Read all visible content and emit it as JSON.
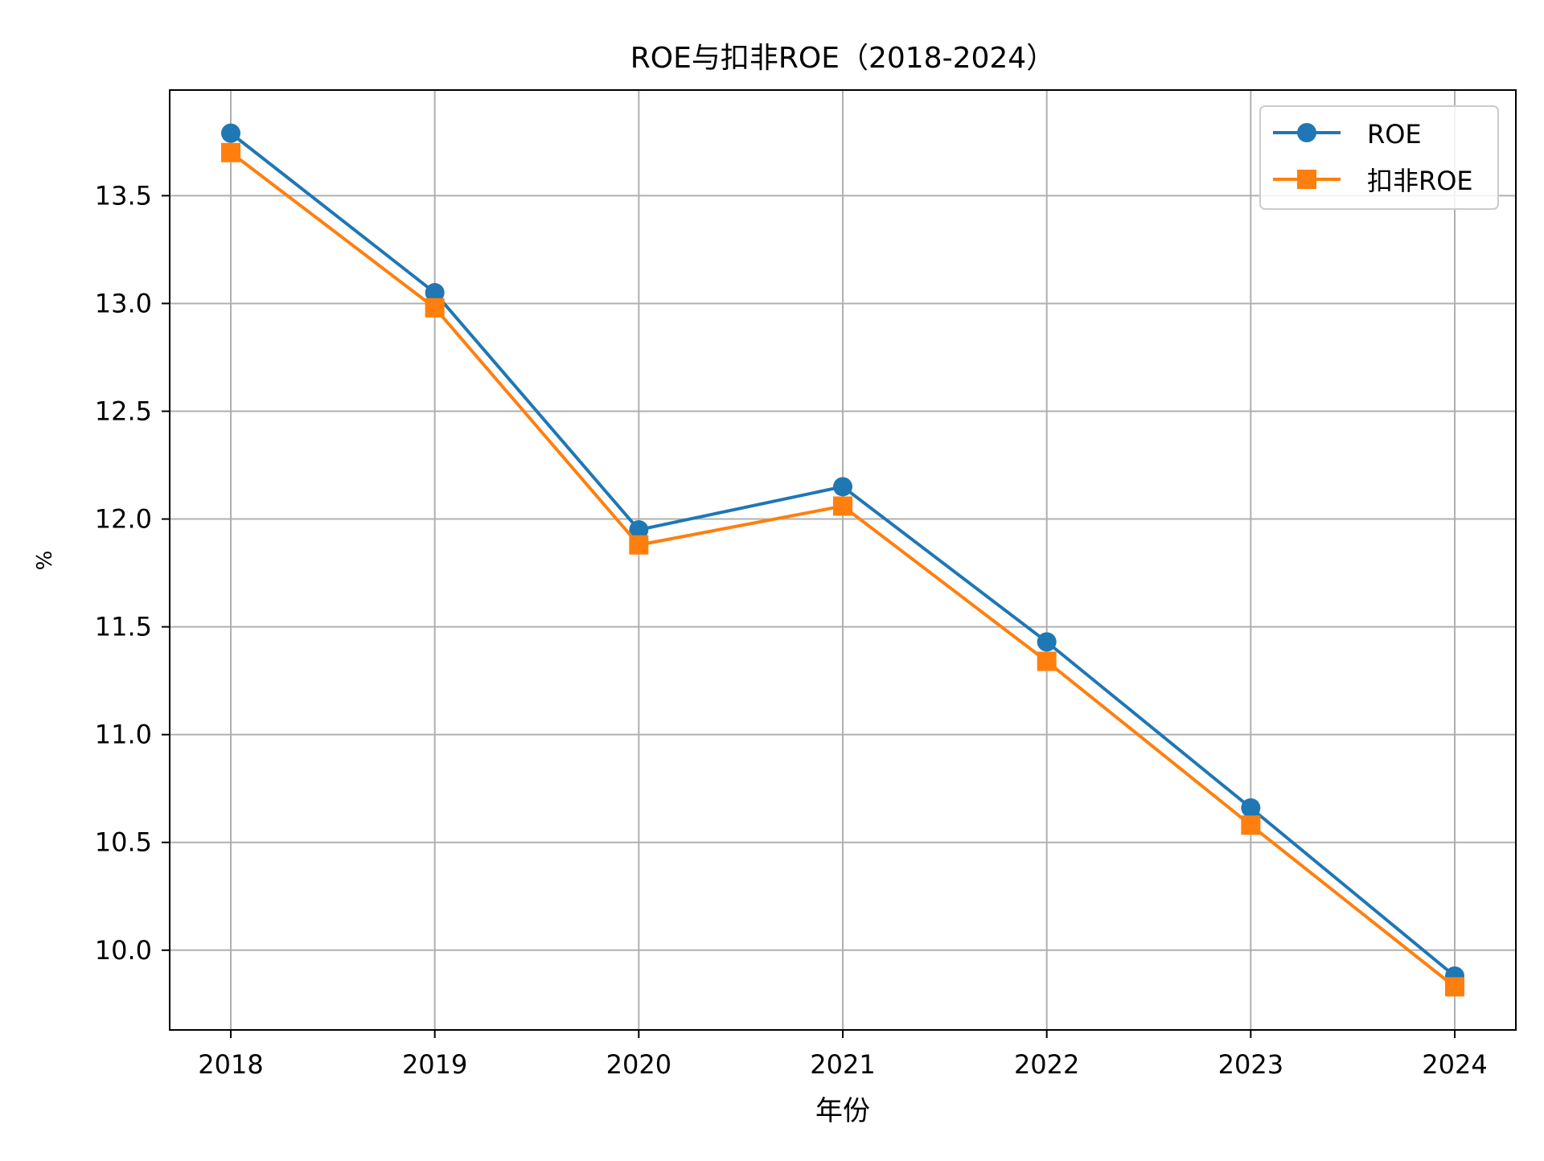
{
  "chart_data": {
    "type": "line",
    "title": "ROE与扣非ROE（2018-2024）",
    "xlabel": "年份",
    "ylabel": "%",
    "categories": [
      "2018",
      "2019",
      "2020",
      "2021",
      "2022",
      "2023",
      "2024"
    ],
    "series": [
      {
        "name": "ROE",
        "values": [
          13.79,
          13.05,
          11.95,
          12.15,
          11.43,
          10.66,
          9.88
        ],
        "color": "#1f77b4",
        "marker": "circle"
      },
      {
        "name": "扣非ROE",
        "values": [
          13.7,
          12.98,
          11.88,
          12.06,
          11.34,
          10.58,
          9.83
        ],
        "color": "#ff7f0e",
        "marker": "square"
      }
    ],
    "ylim": [
      9.63,
      13.99
    ],
    "yticks": [
      10.0,
      10.5,
      11.0,
      11.5,
      12.0,
      12.5,
      13.0,
      13.5
    ],
    "ytick_labels": [
      "10.0",
      "10.5",
      "11.0",
      "11.5",
      "12.0",
      "12.5",
      "13.0",
      "13.5"
    ],
    "grid": true,
    "legend_position": "top-right"
  }
}
